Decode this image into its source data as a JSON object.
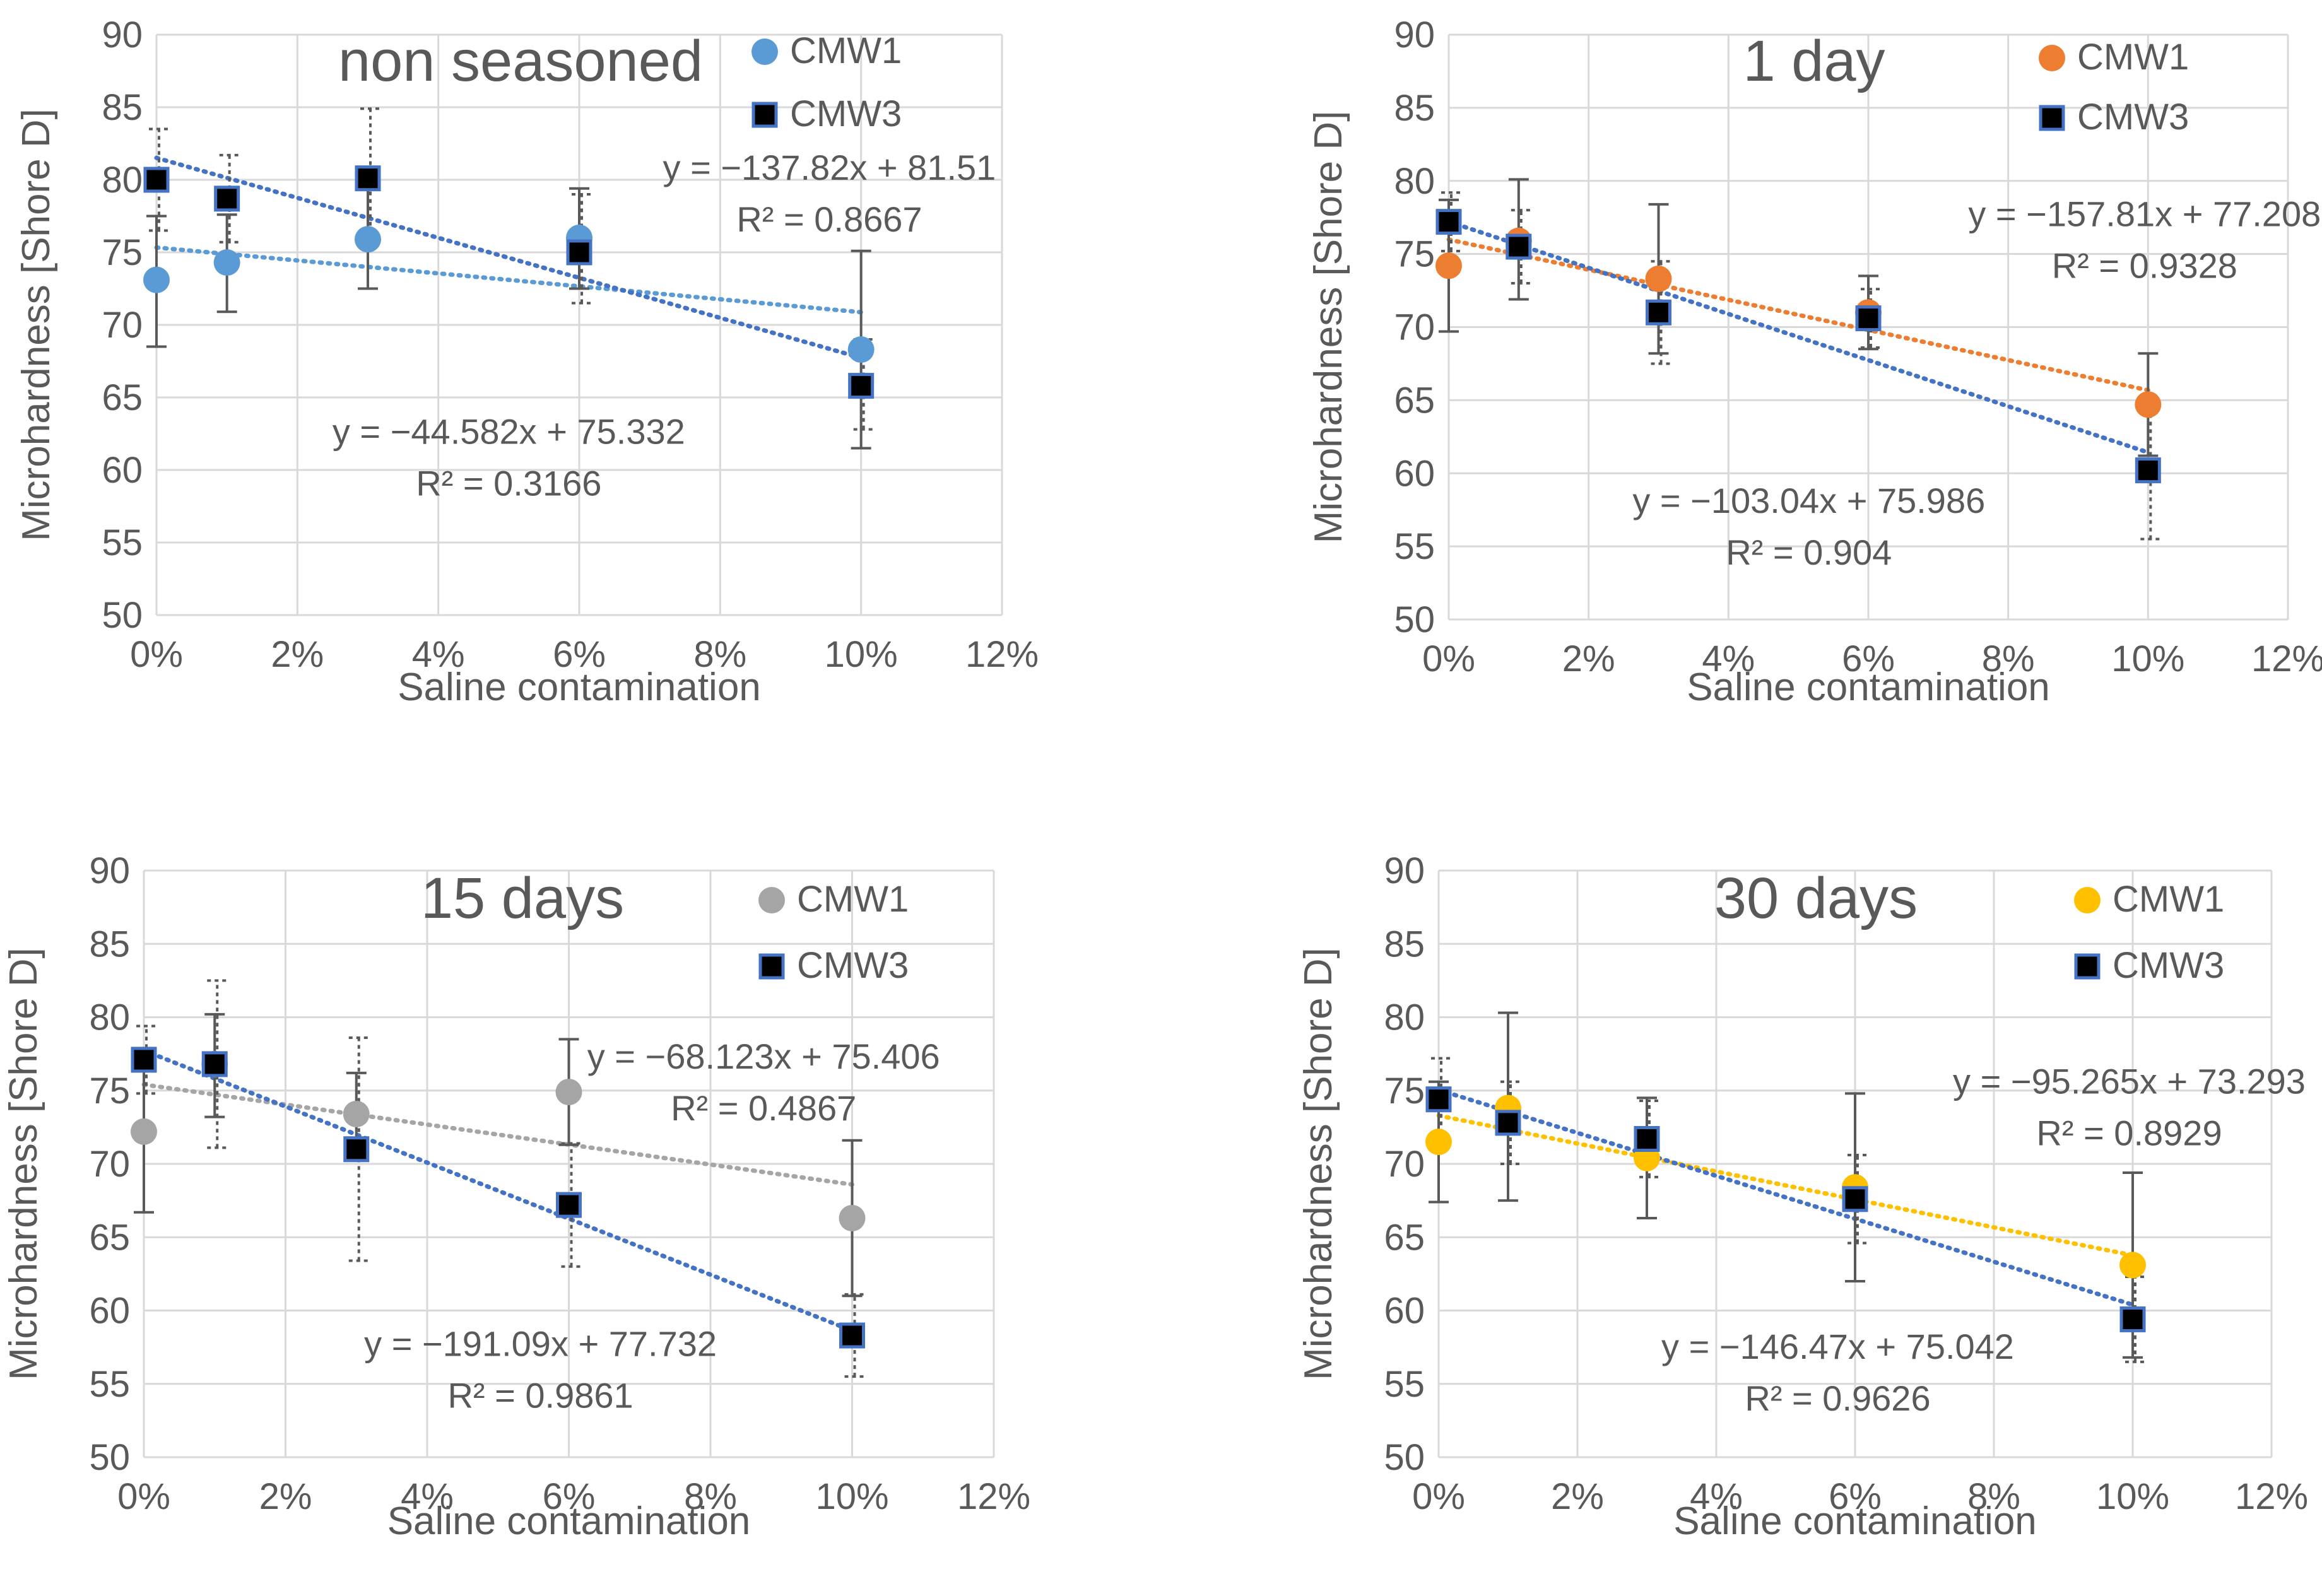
{
  "chart_data": [
    {
      "type": "scatter",
      "title": "non seasoned",
      "xlabel": "Saline contamination",
      "ylabel": "Microhardness [Shore D]",
      "xlim": [
        0,
        0.12
      ],
      "ylim": [
        50,
        90
      ],
      "x_ticks": [
        0,
        0.02,
        0.04,
        0.06,
        0.08,
        0.1,
        0.12
      ],
      "x_tick_labels": [
        "0%",
        "2%",
        "4%",
        "6%",
        "8%",
        "10%",
        "12%"
      ],
      "y_ticks": [
        50,
        55,
        60,
        65,
        70,
        75,
        80,
        85,
        90
      ],
      "y_tick_labels": [
        "50",
        "55",
        "60",
        "65",
        "70",
        "75",
        "80",
        "85",
        "90"
      ],
      "grid": true,
      "legend_position": "top-right",
      "series": [
        {
          "name": "CMW1",
          "marker": "circle",
          "color": "#5B9BD5",
          "trend_color": "#5B9BD5",
          "x": [
            0,
            0.01,
            0.03,
            0.06,
            0.1
          ],
          "y": [
            73.1,
            74.3,
            75.9,
            76.0,
            68.3
          ],
          "err_low": [
            68.5,
            70.9,
            72.5,
            72.5,
            61.5
          ],
          "err_high": [
            77.5,
            77.6,
            79.4,
            79.4,
            75.1
          ],
          "error_style": "solid",
          "trend": {
            "slope": -44.582,
            "intercept": 75.332
          },
          "equation": "y = −44.582x + 75.332",
          "r2": "R² = 0.3166",
          "eq_anchor": [
            0.05,
            61.8
          ]
        },
        {
          "name": "CMW3",
          "marker": "square",
          "color": "#000000",
          "trend_color": "#4472C4",
          "x": [
            0,
            0.01,
            0.03,
            0.06,
            0.1
          ],
          "y": [
            80.0,
            78.7,
            80.1,
            75.0,
            65.8
          ],
          "err_low": [
            76.5,
            75.7,
            75.8,
            71.5,
            62.8
          ],
          "err_high": [
            83.5,
            81.7,
            84.9,
            79.0,
            69.0
          ],
          "error_style": "dotted",
          "trend": {
            "slope": -137.82,
            "intercept": 81.51
          },
          "equation": "y = −137.82x + 81.51",
          "r2": "R² = 0.8667",
          "eq_anchor": [
            0.0955,
            80.0
          ]
        }
      ]
    },
    {
      "type": "scatter",
      "title": "1 day",
      "xlabel": "Saline contamination",
      "ylabel": "Microhardness [Shore D]",
      "xlim": [
        0,
        0.12
      ],
      "ylim": [
        50,
        90
      ],
      "x_ticks": [
        0,
        0.02,
        0.04,
        0.06,
        0.08,
        0.1,
        0.12
      ],
      "x_tick_labels": [
        "0%",
        "2%",
        "4%",
        "6%",
        "8%",
        "10%",
        "12%"
      ],
      "y_ticks": [
        50,
        55,
        60,
        65,
        70,
        75,
        80,
        85,
        90
      ],
      "y_tick_labels": [
        "50",
        "55",
        "60",
        "65",
        "70",
        "75",
        "80",
        "85",
        "90"
      ],
      "grid": true,
      "legend_position": "top-right",
      "series": [
        {
          "name": "CMW1",
          "marker": "circle",
          "color": "#ED7D31",
          "trend_color": "#ED7D31",
          "x": [
            0,
            0.01,
            0.03,
            0.06,
            0.1
          ],
          "y": [
            74.2,
            75.9,
            73.3,
            71.0,
            64.7
          ],
          "err_low": [
            69.7,
            71.9,
            68.2,
            68.5,
            61.2
          ],
          "err_high": [
            78.7,
            80.1,
            78.4,
            73.5,
            68.2
          ],
          "error_style": "solid",
          "trend": {
            "slope": -103.04,
            "intercept": 75.986
          },
          "equation": "y = −103.04x + 75.986",
          "r2": "R² = 0.904",
          "eq_anchor": [
            0.0515,
            57.3
          ]
        },
        {
          "name": "CMW3",
          "marker": "square",
          "color": "#000000",
          "trend_color": "#4472C4",
          "x": [
            0,
            0.01,
            0.03,
            0.06,
            0.1
          ],
          "y": [
            77.2,
            75.5,
            71.0,
            70.6,
            60.2
          ],
          "err_low": [
            75.2,
            73.0,
            67.5,
            68.6,
            55.5
          ],
          "err_high": [
            79.2,
            78.0,
            74.5,
            72.6,
            64.9
          ],
          "error_style": "dotted",
          "trend": {
            "slope": -157.81,
            "intercept": 77.208
          },
          "equation": "y = −157.81x + 77.208",
          "r2": "R² = 0.9328",
          "eq_anchor": [
            0.0995,
            76.9
          ]
        }
      ]
    },
    {
      "type": "scatter",
      "title": "15 days",
      "xlabel": "Saline contamination",
      "ylabel": "Microhardness [Shore D]",
      "xlim": [
        0,
        0.12
      ],
      "ylim": [
        50,
        90
      ],
      "x_ticks": [
        0,
        0.02,
        0.04,
        0.06,
        0.08,
        0.1,
        0.12
      ],
      "x_tick_labels": [
        "0%",
        "2%",
        "4%",
        "6%",
        "8%",
        "10%",
        "12%"
      ],
      "y_ticks": [
        50,
        55,
        60,
        65,
        70,
        75,
        80,
        85,
        90
      ],
      "y_tick_labels": [
        "50",
        "55",
        "60",
        "65",
        "70",
        "75",
        "80",
        "85",
        "90"
      ],
      "grid": true,
      "legend_position": "top-right",
      "series": [
        {
          "name": "CMW1",
          "marker": "circle",
          "color": "#A5A5A5",
          "trend_color": "#A5A5A5",
          "x": [
            0,
            0.01,
            0.03,
            0.06,
            0.1
          ],
          "y": [
            72.2,
            76.8,
            73.4,
            74.9,
            66.3
          ],
          "err_low": [
            66.7,
            73.2,
            70.6,
            71.3,
            61.0
          ],
          "err_high": [
            77.7,
            80.2,
            76.2,
            78.5,
            71.6
          ],
          "error_style": "solid",
          "trend": {
            "slope": -68.123,
            "intercept": 75.406
          },
          "equation": "y = −68.123x + 75.406",
          "r2": "R² = 0.4867",
          "eq_anchor": [
            0.0875,
            76.5
          ]
        },
        {
          "name": "CMW3",
          "marker": "square",
          "color": "#000000",
          "trend_color": "#4472C4",
          "x": [
            0,
            0.01,
            0.03,
            0.06,
            0.1
          ],
          "y": [
            77.1,
            76.8,
            71.0,
            67.2,
            58.3
          ],
          "err_low": [
            74.8,
            71.1,
            63.4,
            63.0,
            55.5
          ],
          "err_high": [
            79.4,
            82.5,
            78.6,
            71.4,
            61.1
          ],
          "error_style": "dotted",
          "trend": {
            "slope": -191.09,
            "intercept": 77.732
          },
          "equation": "y = −191.09x + 77.732",
          "r2": "R² = 0.9861",
          "eq_anchor": [
            0.056,
            56.9
          ]
        }
      ]
    },
    {
      "type": "scatter",
      "title": "30 days",
      "xlabel": "Saline contamination",
      "ylabel": "Microhardness [Shore D]",
      "xlim": [
        0,
        0.12
      ],
      "ylim": [
        50,
        90
      ],
      "x_ticks": [
        0,
        0.02,
        0.04,
        0.06,
        0.08,
        0.1,
        0.12
      ],
      "x_tick_labels": [
        "0%",
        "2%",
        "4%",
        "6%",
        "8%",
        "10%",
        "12%"
      ],
      "y_ticks": [
        50,
        55,
        60,
        65,
        70,
        75,
        80,
        85,
        90
      ],
      "y_tick_labels": [
        "50",
        "55",
        "60",
        "65",
        "70",
        "75",
        "80",
        "85",
        "90"
      ],
      "grid": true,
      "legend_position": "top-right",
      "series": [
        {
          "name": "CMW1",
          "marker": "circle",
          "color": "#FFC000",
          "trend_color": "#FFC000",
          "x": [
            0,
            0.01,
            0.03,
            0.06,
            0.1
          ],
          "y": [
            71.5,
            73.8,
            70.4,
            68.4,
            63.1
          ],
          "err_low": [
            67.4,
            67.5,
            66.3,
            62.0,
            56.8
          ],
          "err_high": [
            75.6,
            80.3,
            74.5,
            74.8,
            69.4
          ],
          "error_style": "solid",
          "trend": {
            "slope": -95.265,
            "intercept": 73.293
          },
          "equation": "y = −95.265x + 73.293",
          "r2": "R² = 0.8929",
          "eq_anchor": [
            0.0995,
            74.8
          ]
        },
        {
          "name": "CMW3",
          "marker": "square",
          "color": "#000000",
          "trend_color": "#4472C4",
          "x": [
            0,
            0.01,
            0.03,
            0.06,
            0.1
          ],
          "y": [
            74.4,
            72.8,
            71.7,
            67.6,
            59.4
          ],
          "err_low": [
            71.6,
            70.0,
            69.1,
            64.6,
            56.5
          ],
          "err_high": [
            77.2,
            75.6,
            74.3,
            70.6,
            62.3
          ],
          "error_style": "dotted",
          "trend": {
            "slope": -146.47,
            "intercept": 75.042
          },
          "equation": "y = −146.47x + 75.042",
          "r2": "R² = 0.9626",
          "eq_anchor": [
            0.0575,
            56.7
          ]
        }
      ]
    }
  ]
}
